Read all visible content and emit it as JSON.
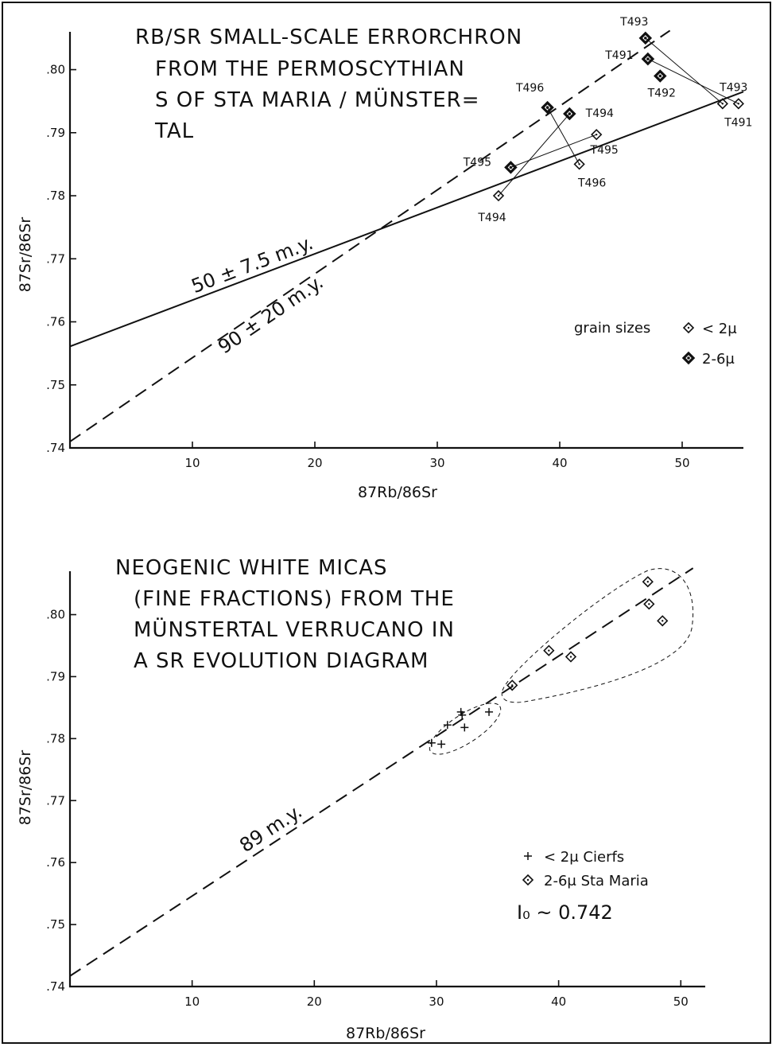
{
  "chart_data": [
    {
      "type": "scatter",
      "title_lines": [
        "RB/SR SMALL-SCALE ERRORCHRON",
        "FROM THE PERMOSCYTHIAN",
        "S OF STA MARIA / MÜNSTER=",
        "TAL"
      ],
      "xlabel": "87Rb/86Sr",
      "ylabel": "87Sr/86Sr",
      "xlim": [
        0,
        55
      ],
      "ylim": [
        0.74,
        0.806
      ],
      "xticks": [
        10,
        20,
        30,
        40,
        50
      ],
      "yticks": [
        0.74,
        0.75,
        0.76,
        0.77,
        0.78,
        0.79,
        0.8
      ],
      "ytick_labels": [
        ".74",
        ".75",
        ".76",
        ".77",
        ".78",
        ".79",
        ".80"
      ],
      "legend_title": "grain sizes",
      "series": [
        {
          "name": "< 2μ",
          "marker": "open-diamond",
          "points": [
            {
              "label": "T494",
              "x": 35.0,
              "y": 0.78
            },
            {
              "label": "T496",
              "x": 41.6,
              "y": 0.785
            },
            {
              "label": "T495",
              "x": 43.0,
              "y": 0.7897
            },
            {
              "label": "T493",
              "x": 53.3,
              "y": 0.7946
            },
            {
              "label": "T491",
              "x": 54.6,
              "y": 0.7946
            }
          ]
        },
        {
          "name": "2-6μ",
          "marker": "filled-diamond",
          "points": [
            {
              "label": "T495",
              "x": 36.0,
              "y": 0.7845
            },
            {
              "label": "T496",
              "x": 39.0,
              "y": 0.794
            },
            {
              "label": "T494",
              "x": 40.8,
              "y": 0.793
            },
            {
              "label": "T493",
              "x": 47.0,
              "y": 0.805
            },
            {
              "label": "T491",
              "x": 47.2,
              "y": 0.8017
            },
            {
              "label": "T492",
              "x": 48.2,
              "y": 0.799
            }
          ]
        }
      ],
      "regression_lines": [
        {
          "label": "50 ± 7.5 m.y.",
          "style": "solid",
          "x": [
            0,
            55
          ],
          "y": [
            0.7561,
            0.7965
          ]
        },
        {
          "label": "90 ± 20 m.y.",
          "style": "dashed",
          "x": [
            0,
            49
          ],
          "y": [
            0.741,
            0.8062
          ]
        }
      ],
      "tie_lines": [
        [
          "T493",
          "T493"
        ],
        [
          "T491",
          "T491"
        ],
        [
          "T494",
          "T494"
        ],
        [
          "T495",
          "T495"
        ],
        [
          "T496",
          "T496"
        ]
      ],
      "legend_position": "right"
    },
    {
      "type": "scatter",
      "title_lines": [
        "NEOGENIC WHITE MICAS",
        "(FINE FRACTIONS) FROM THE",
        "MÜNSTERTAL VERRUCANO IN",
        "A SR EVOLUTION DIAGRAM"
      ],
      "xlabel": "87Rb/86Sr",
      "ylabel": "87Sr/86Sr",
      "xlim": [
        0,
        52
      ],
      "ylim": [
        0.74,
        0.807
      ],
      "xticks": [
        10,
        20,
        30,
        40,
        50
      ],
      "yticks": [
        0.74,
        0.75,
        0.76,
        0.77,
        0.78,
        0.79,
        0.8
      ],
      "ytick_labels": [
        ".74",
        ".75",
        ".76",
        ".77",
        ".78",
        ".79",
        ".80"
      ],
      "series": [
        {
          "name": "< 2μ Cierfs",
          "marker": "plus",
          "points": [
            {
              "x": 29.6,
              "y": 0.7793
            },
            {
              "x": 30.4,
              "y": 0.7791
            },
            {
              "x": 30.9,
              "y": 0.7822
            },
            {
              "x": 32.0,
              "y": 0.7843
            },
            {
              "x": 32.1,
              "y": 0.7838
            },
            {
              "x": 32.3,
              "y": 0.7818
            },
            {
              "x": 34.3,
              "y": 0.7843
            }
          ]
        },
        {
          "name": "2-6μ Sta Maria",
          "marker": "open-diamond",
          "points": [
            {
              "x": 36.2,
              "y": 0.7886
            },
            {
              "x": 39.2,
              "y": 0.7942
            },
            {
              "x": 41.0,
              "y": 0.7932
            },
            {
              "x": 47.3,
              "y": 0.8053
            },
            {
              "x": 47.4,
              "y": 0.8017
            },
            {
              "x": 48.5,
              "y": 0.799
            }
          ]
        }
      ],
      "regression_lines": [
        {
          "label": "89 m.y.",
          "style": "dashed",
          "x": [
            0,
            51
          ],
          "y": [
            0.7417,
            0.8075
          ]
        }
      ],
      "annotation": "I₀ ~ 0.742",
      "legend_position": "right"
    }
  ],
  "colors": {
    "ink": "#111111",
    "background": "#ffffff"
  }
}
